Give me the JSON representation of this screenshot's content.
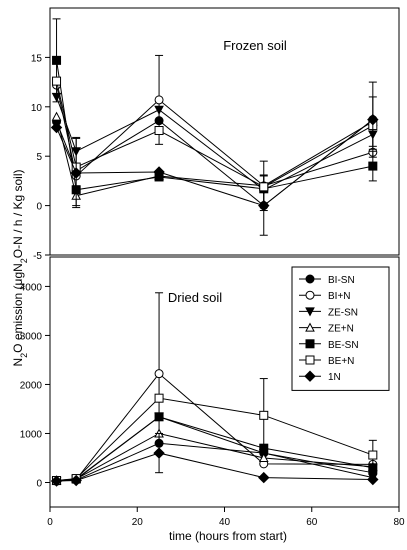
{
  "figure": {
    "ylabel_parts": [
      "N",
      "2",
      "O emission (μgN",
      "2",
      "O-N / h / Kg soil)"
    ],
    "xlabel": "time (hours from start)"
  },
  "markers": {
    "BI-SN": "circle-filled",
    "BI+N": "circle-open",
    "ZE-SN": "triangle-down-filled",
    "ZE+N": "triangle-up-open",
    "BE-SN": "square-filled",
    "BE+N": "square-open",
    "1N": "diamond-filled"
  },
  "chart_data": [
    {
      "type": "line",
      "title": "Frozen soil",
      "xlim": [
        0,
        80
      ],
      "ylim": [
        -5,
        20
      ],
      "x_ticks": [],
      "y_ticks": [
        -5,
        0,
        5,
        10,
        15
      ],
      "grid": false,
      "x": [
        1.5,
        6,
        25,
        49,
        74
      ],
      "series": [
        {
          "name": "BI-SN",
          "values": [
            8.5,
            3.5,
            8.6,
            0,
            8.7
          ],
          "errors": [
            null,
            null,
            null,
            3,
            null
          ]
        },
        {
          "name": "BI+N",
          "values": [
            12.2,
            3.0,
            10.7,
            2.0,
            5.4
          ],
          "errors": [
            null,
            null,
            4.5,
            null,
            null
          ]
        },
        {
          "name": "ZE-SN",
          "values": [
            11.0,
            5.5,
            9.7,
            1.6,
            7.2
          ],
          "errors": [
            null,
            1.4,
            null,
            1.5,
            1.5
          ]
        },
        {
          "name": "ZE+N",
          "values": [
            9.0,
            1.0,
            3.0,
            2.0,
            8.5
          ],
          "errors": [
            null,
            1.0,
            null,
            2.5,
            2.5
          ]
        },
        {
          "name": "BE-SN",
          "values": [
            14.7,
            1.6,
            2.9,
            1.7,
            4.0
          ],
          "errors": [
            4.2,
            null,
            null,
            null,
            1.5
          ]
        },
        {
          "name": "BE+N",
          "values": [
            12.6,
            3.9,
            7.6,
            1.9,
            8.1
          ],
          "errors": [
            null,
            null,
            null,
            null,
            null
          ]
        },
        {
          "name": "1N",
          "values": [
            7.9,
            3.3,
            3.4,
            0,
            8.7
          ],
          "errors": [
            null,
            3.5,
            null,
            null,
            3.8
          ]
        }
      ]
    },
    {
      "type": "line",
      "title": "Dried soil",
      "xlim": [
        0,
        80
      ],
      "ylim": [
        -500,
        4600
      ],
      "x_ticks": [
        0,
        20,
        40,
        60,
        80
      ],
      "y_ticks": [
        0,
        1000,
        2000,
        3000,
        4000
      ],
      "grid": false,
      "legend": "top-right",
      "x": [
        1.5,
        6,
        25,
        49,
        74
      ],
      "series": [
        {
          "name": "BI-SN",
          "values": [
            30,
            50,
            800,
            600,
            200
          ],
          "errors": [
            null,
            null,
            null,
            null,
            null
          ]
        },
        {
          "name": "BI+N",
          "values": [
            30,
            60,
            2220,
            380,
            370
          ],
          "errors": [
            null,
            null,
            1650,
            null,
            null
          ]
        },
        {
          "name": "ZE-SN",
          "values": [
            30,
            60,
            1340,
            600,
            100
          ],
          "errors": [
            null,
            null,
            null,
            null,
            null
          ]
        },
        {
          "name": "ZE+N",
          "values": [
            30,
            70,
            1000,
            500,
            320
          ],
          "errors": [
            null,
            null,
            null,
            null,
            null
          ]
        },
        {
          "name": "BE-SN",
          "values": [
            40,
            70,
            1340,
            700,
            300
          ],
          "errors": [
            null,
            null,
            null,
            null,
            null
          ]
        },
        {
          "name": "BE+N",
          "values": [
            40,
            80,
            1720,
            1370,
            560
          ],
          "errors": [
            null,
            null,
            null,
            750,
            300
          ]
        },
        {
          "name": "1N",
          "values": [
            30,
            40,
            600,
            100,
            60
          ],
          "errors": [
            null,
            null,
            400,
            null,
            null
          ]
        }
      ]
    }
  ]
}
